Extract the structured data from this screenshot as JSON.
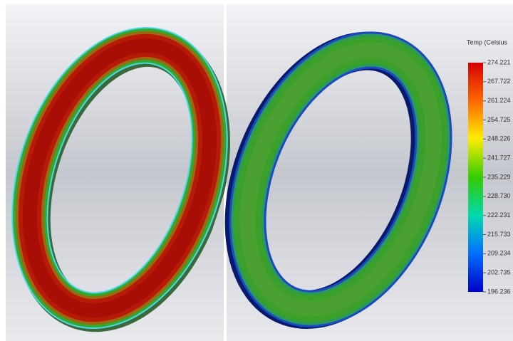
{
  "legend": {
    "title": "Temp (Celsius",
    "labels": [
      "274.221",
      "267.722",
      "261.224",
      "254.725",
      "248.226",
      "241.727",
      "235.229",
      "228.730",
      "222.231",
      "215.733",
      "209.234",
      "202.735",
      "196.236"
    ]
  }
}
